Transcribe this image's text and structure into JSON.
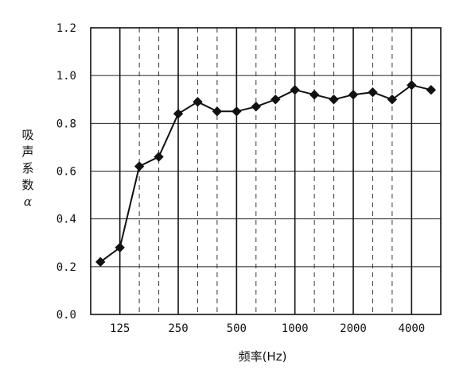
{
  "chart_data": {
    "type": "line",
    "ylabel_chars": [
      "吸",
      "声",
      "系",
      "数"
    ],
    "ylabel_symbol": "α",
    "xlabel": "频率(Hz)",
    "ylim": [
      0.0,
      1.2
    ],
    "y_ticks": [
      "0.0",
      "0.2",
      "0.4",
      "0.6",
      "0.8",
      "1.0",
      "1.2"
    ],
    "x_tick_labels": [
      "125",
      "250",
      "500",
      "1000",
      "2000",
      "4000"
    ],
    "grid": "solid horizontal at each 0.2; solid vertical at octave bands, dashed vertical at one-third-octave bands",
    "marker": "diamond",
    "series": [
      {
        "x": [
          100,
          125,
          160,
          200,
          250,
          315,
          400,
          500,
          630,
          800,
          1000,
          1250,
          1600,
          2000,
          2500,
          3150,
          4000,
          5000
        ],
        "values": [
          0.22,
          0.28,
          0.62,
          0.66,
          0.84,
          0.89,
          0.85,
          0.85,
          0.87,
          0.9,
          0.94,
          0.92,
          0.9,
          0.92,
          0.93,
          0.9,
          0.96,
          0.94
        ]
      }
    ]
  }
}
